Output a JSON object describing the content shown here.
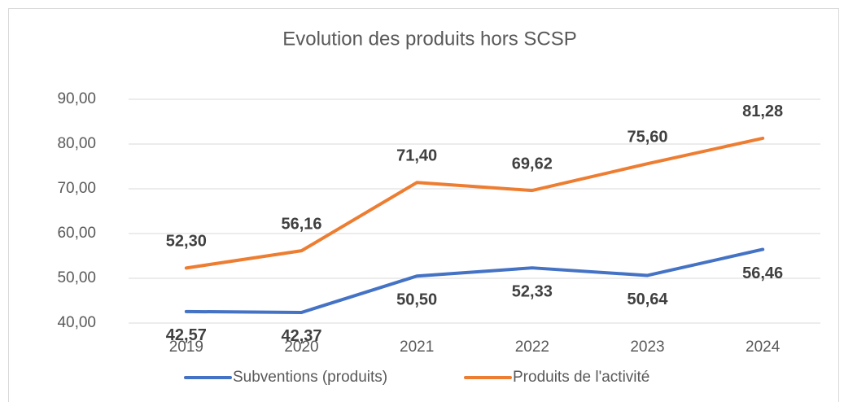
{
  "chart_data": {
    "type": "line",
    "title": "Evolution des produits hors SCSP",
    "categories": [
      "2019",
      "2020",
      "2021",
      "2022",
      "2023",
      "2024"
    ],
    "series": [
      {
        "name": "Subventions (produits)",
        "color": "#4472c4",
        "values": [
          42.57,
          42.37,
          50.5,
          52.33,
          50.64,
          56.46
        ],
        "value_labels": [
          "42,57",
          "42,37",
          "50,50",
          "52,33",
          "50,64",
          "56,46"
        ]
      },
      {
        "name": "Produits de l'activité",
        "color": "#ed7d31",
        "values": [
          52.3,
          56.16,
          71.4,
          69.62,
          75.6,
          81.28
        ],
        "value_labels": [
          "52,30",
          "56,16",
          "71,40",
          "69,62",
          "75,60",
          "81,28"
        ]
      }
    ],
    "ylim": [
      40,
      90
    ],
    "yticks": [
      {
        "value": 40,
        "label": "40,00"
      },
      {
        "value": 50,
        "label": "50,00"
      },
      {
        "value": 60,
        "label": "60,00"
      },
      {
        "value": 70,
        "label": "70,00"
      },
      {
        "value": 80,
        "label": "80,00"
      },
      {
        "value": 90,
        "label": "90,00"
      }
    ],
    "grid": true,
    "legend": "bottom"
  }
}
